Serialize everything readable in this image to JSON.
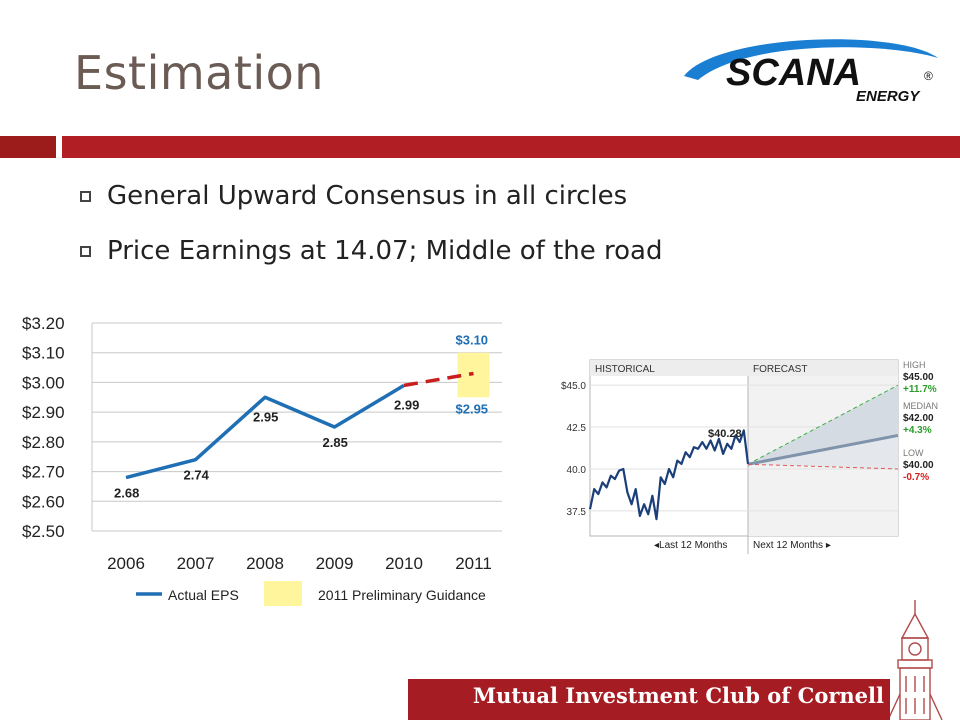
{
  "slide": {
    "title": "Estimation",
    "bullets": [
      "General Upward Consensus in all circles",
      "Price Earnings at 14.07; Middle of the road"
    ],
    "footer": "Mutual Investment Club of Cornell",
    "logo": {
      "word": "SCANA",
      "sub": "ENERGY",
      "reg": "®"
    }
  },
  "colors": {
    "accent_red": "#b11f24",
    "line_blue": "#1f6fb5",
    "guidance_yellow": "#fff59d",
    "forecast_grey": "#7f93aa"
  },
  "chart_data": [
    {
      "type": "line",
      "categories": [
        "2006",
        "2007",
        "2008",
        "2009",
        "2010",
        "2011"
      ],
      "series": [
        {
          "name": "Actual EPS",
          "values": [
            2.68,
            2.74,
            2.95,
            2.85,
            2.99,
            null
          ],
          "point_labels": [
            "2.68",
            "2.74",
            "2.95",
            "2.85",
            "2.99",
            ""
          ]
        }
      ],
      "projection": {
        "from_x": "2010",
        "from_y": 2.99,
        "to_x": "2011",
        "to_y": 3.03,
        "style": "dashed"
      },
      "guidance_band": {
        "name": "2011 Preliminary Guidance",
        "x": "2011",
        "low": 2.95,
        "high": 3.1,
        "low_label": "$2.95",
        "high_label": "$3.10"
      },
      "y_ticks": [
        "$3.20",
        "$3.10",
        "$3.00",
        "$2.90",
        "$2.80",
        "$2.70",
        "$2.60",
        "$2.50"
      ],
      "ylim": [
        2.5,
        3.2
      ],
      "grid": true,
      "legend": [
        "Actual EPS",
        "2011 Preliminary Guidance"
      ],
      "legend_position": "bottom"
    },
    {
      "type": "line",
      "panels": [
        "HISTORICAL",
        "FORECAST"
      ],
      "x_labels": [
        "◂Last 12 Months",
        "Next 12 Months ▸"
      ],
      "y_ticks": [
        "$45.0",
        "42.5",
        "40.0",
        "37.5"
      ],
      "ylim": [
        36.0,
        46.5
      ],
      "current_label": "$40.28",
      "historical_prices": [
        37.6,
        38.8,
        38.5,
        39.2,
        38.9,
        39.6,
        39.4,
        39.9,
        40.0,
        38.6,
        37.9,
        38.8,
        37.2,
        37.9,
        37.3,
        38.4,
        37.0,
        39.5,
        39.1,
        40.0,
        39.5,
        40.5,
        40.3,
        41.0,
        40.7,
        41.3,
        41.2,
        41.6,
        41.2,
        41.7,
        41.1,
        41.8,
        40.9,
        41.5,
        41.2,
        42.0,
        41.6,
        42.3,
        40.3
      ],
      "forecast": [
        {
          "label": "HIGH",
          "value_label": "$45.00",
          "change": "+11.7%",
          "value": 45.0
        },
        {
          "label": "MEDIAN",
          "value_label": "$42.00",
          "change": "+4.3%",
          "value": 42.0
        },
        {
          "label": "LOW",
          "value_label": "$40.00",
          "change": "-0.7%",
          "value": 40.0
        }
      ],
      "start_value": 40.28
    }
  ]
}
